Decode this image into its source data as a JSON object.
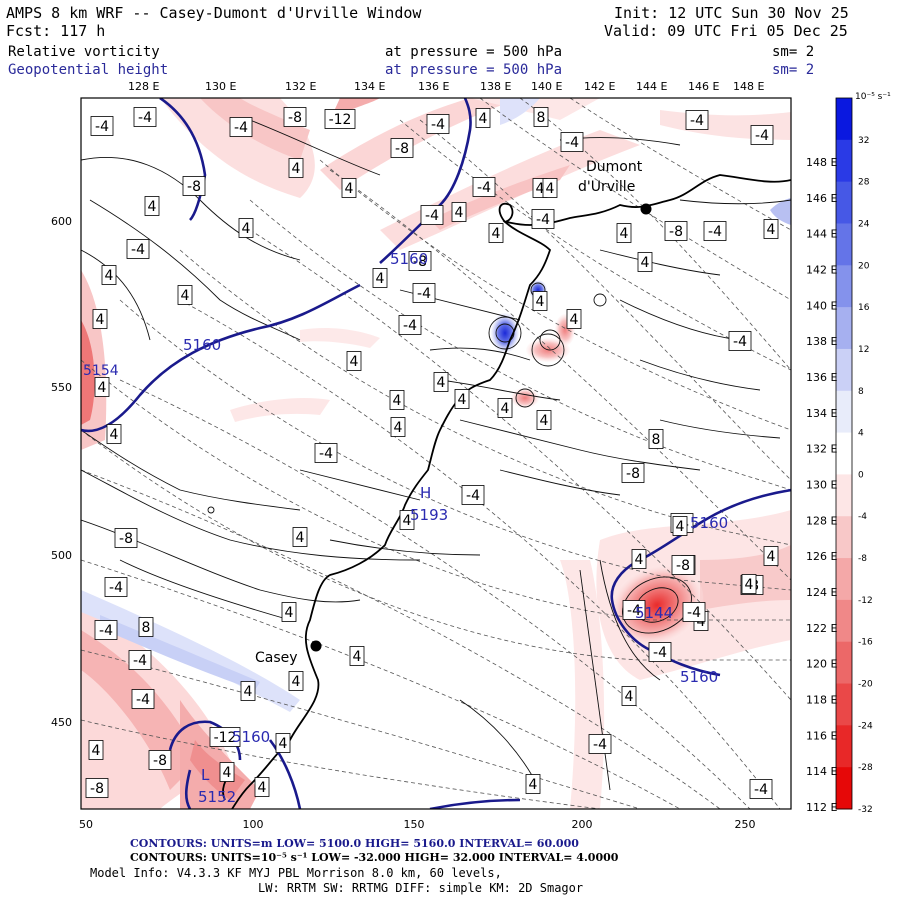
{
  "header": {
    "line1_left": "AMPS 8 km WRF -- Casey-Dumont d'Urville Window",
    "line2_left": "Fcst:  117 h",
    "init": "Init: 12 UTC Sun 30 Nov 25",
    "valid": "Valid: 09 UTC Fri 05 Dec 25",
    "field1": {
      "name": "Relative vorticity",
      "level": "at pressure =  500 hPa",
      "sm": "sm= 2"
    },
    "field2": {
      "name": "Geopotential height",
      "level": "at pressure =  500 hPa",
      "sm": "sm= 2"
    }
  },
  "lon_top_labels": [
    "128 E",
    "130 E",
    "132 E",
    "134 E",
    "136 E",
    "138 E",
    "140 E",
    "142 E",
    "144 E",
    "146 E",
    "148 E"
  ],
  "lat_right_labels": [
    "148 E",
    "146 E",
    "144 E",
    "142 E",
    "140 E",
    "138 E",
    "136 E",
    "134 E",
    "132 E",
    "130 E",
    "128 E",
    "126 E",
    "124 E",
    "122 E",
    "120 E",
    "118 E",
    "116 E",
    "114 E",
    "112 E"
  ],
  "grid_axes": {
    "x_ticks": [
      "50",
      "100",
      "150",
      "200",
      "250"
    ],
    "y_ticks": [
      "600",
      "550",
      "500",
      "450"
    ]
  },
  "colorbar": {
    "unit": "10⁻⁵ s⁻¹",
    "levels": [
      "32",
      "28",
      "24",
      "20",
      "16",
      "12",
      "8",
      "4",
      "0",
      "-4",
      "-8",
      "-12",
      "-16",
      "-20",
      "-24",
      "-28",
      "-32"
    ],
    "colors": [
      "#0a18e0",
      "#2a3ae6",
      "#4658e6",
      "#6474e8",
      "#8492ec",
      "#a6b0f0",
      "#cad0f6",
      "#e8ecfa",
      "#ffffff",
      "#fde6e6",
      "#f8c8c8",
      "#f4a8a8",
      "#f08888",
      "#ec6868",
      "#ea4848",
      "#e82828",
      "#e60808"
    ]
  },
  "stations": [
    {
      "name": "Casey"
    },
    {
      "name": "Dumont"
    },
    {
      "name": "d'Urville"
    }
  ],
  "height_labels": [
    "5160",
    "5160",
    "5160",
    "5160",
    "5160",
    "5160",
    "5152",
    "5193",
    "5144",
    "5154"
  ],
  "high_label": "H",
  "low_labels": [
    "L",
    "L"
  ],
  "vort_labels": [
    "-4",
    "-4",
    "-4",
    "-8",
    "-12",
    "-4",
    "4",
    "8",
    "-8",
    "-4",
    "-4",
    "-4",
    "4",
    "-8",
    "4",
    "-4",
    "4",
    "4",
    "-4",
    "4",
    "4",
    "4",
    "-4",
    "-8",
    "-4",
    "4",
    "-4",
    "4",
    "-8",
    "4",
    "4",
    "4",
    "4",
    "-4",
    "4",
    "4",
    "4",
    "-4",
    "4",
    "-4",
    "4",
    "4",
    "4",
    "4",
    "4",
    "4",
    "4",
    "-4",
    "4",
    "-4",
    "8",
    "-8",
    "-4",
    "4",
    "4",
    "-8",
    "4",
    "4",
    "4",
    "-4",
    "-8",
    "-4",
    "4",
    "8",
    "-4",
    "4",
    "-4",
    "4",
    "4",
    "4",
    "-4",
    "4",
    "-4",
    "4",
    "-12",
    "-8",
    "4",
    "-8",
    "4",
    "4",
    "-4",
    "4",
    "-4",
    "-4",
    "4",
    "-8",
    "4",
    "4",
    "4"
  ],
  "footer": {
    "line1": "CONTOURS:  UNITS=m  LOW=  5100.0       HIGH=  5160.0      INTERVAL=   60.000",
    "line2": "CONTOURS:  UNITS=10⁻⁵ s⁻¹  LOW=  -32.000      HIGH=  32.000      INTERVAL=   4.0000",
    "line3": "Model Info: V4.3.3   KF      MYJ PBL  Morrison          8.0 km,  60 levels,",
    "line4": "LW: RRTM SW: RRTMG   DIFF: simple KM: 2D Smagor"
  }
}
